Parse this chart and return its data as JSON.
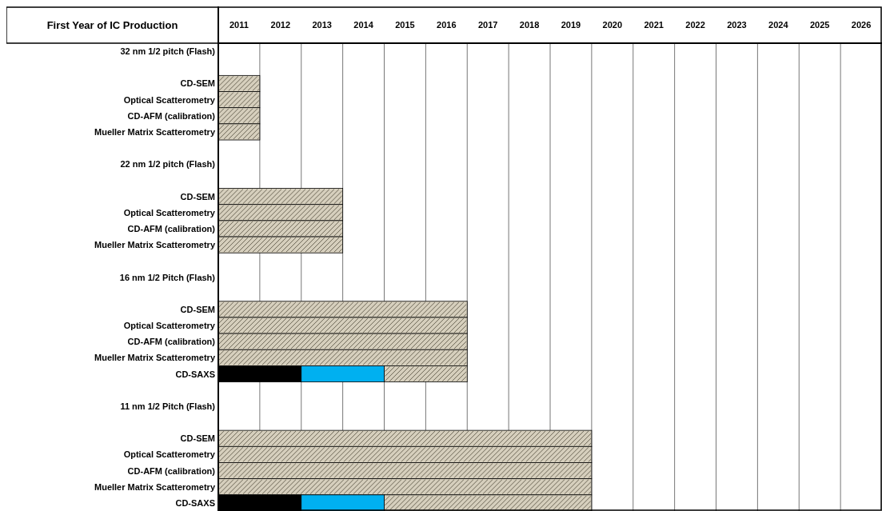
{
  "chart_data": {
    "type": "bar",
    "orientation": "horizontal",
    "stacked": false,
    "xlabel": "First Year of IC Production",
    "categories": [
      "32 nm 1/2 pitch (Flash)",
      null,
      "CD-SEM",
      "Optical Scatterometry",
      "CD-AFM (calibration)",
      "Mueller Matrix Scatterometry",
      null,
      "22 nm 1/2 pitch (Flash)",
      null,
      "CD-SEM",
      "Optical Scatterometry",
      "CD-AFM (calibration)",
      "Mueller Matrix Scatterometry",
      null,
      "16 nm 1/2 Pitch (Flash)",
      null,
      "CD-SEM",
      "Optical Scatterometry",
      "CD-AFM (calibration)",
      "Mueller Matrix Scatterometry",
      "CD-SAXS",
      null,
      "11 nm 1/2 Pitch (Flash)",
      null,
      "CD-SEM",
      "Optical Scatterometry",
      "CD-AFM (calibration)",
      "Mueller Matrix Scatterometry",
      "CD-SAXS"
    ],
    "series": [
      {
        "color": "#d6cfbd",
        "base": [
          null,
          null,
          2011,
          2011,
          2011,
          2011,
          null,
          null,
          null,
          2011,
          2011,
          2011,
          2011,
          null,
          null,
          null,
          2011,
          2011,
          2011,
          2011,
          2015,
          null,
          null,
          null,
          2011,
          2011,
          2011,
          2011,
          2015
        ],
        "values": [
          null,
          null,
          1,
          1,
          1,
          1,
          null,
          null,
          null,
          3,
          3,
          3,
          3,
          null,
          null,
          null,
          6,
          6,
          6,
          6,
          2,
          null,
          null,
          null,
          9,
          9,
          9,
          9,
          5
        ]
      },
      {
        "color": "#000000",
        "base": [
          null,
          null,
          null,
          null,
          null,
          null,
          null,
          null,
          null,
          null,
          null,
          null,
          null,
          null,
          null,
          null,
          null,
          null,
          null,
          null,
          2011,
          null,
          null,
          null,
          null,
          null,
          null,
          null,
          2011
        ],
        "values": [
          null,
          null,
          null,
          null,
          null,
          null,
          null,
          null,
          null,
          null,
          null,
          null,
          null,
          null,
          null,
          null,
          null,
          null,
          null,
          null,
          2,
          null,
          null,
          null,
          null,
          null,
          null,
          null,
          2
        ]
      },
      {
        "color": "#00b0f0",
        "base": [
          null,
          null,
          null,
          null,
          null,
          null,
          null,
          null,
          null,
          null,
          null,
          null,
          null,
          null,
          null,
          null,
          null,
          null,
          null,
          null,
          2013,
          null,
          null,
          null,
          null,
          null,
          null,
          null,
          2013
        ],
        "values": [
          null,
          null,
          null,
          null,
          null,
          null,
          null,
          null,
          null,
          null,
          null,
          null,
          null,
          null,
          null,
          null,
          null,
          null,
          null,
          null,
          2,
          null,
          null,
          null,
          null,
          null,
          null,
          null,
          2
        ]
      }
    ],
    "xlim": [
      2011,
      2027
    ],
    "xticks": [
      {
        "value": 2011.5,
        "label": "2011"
      },
      {
        "value": 2012.5,
        "label": "2012"
      },
      {
        "value": 2013.5,
        "label": "2013"
      },
      {
        "value": 2014.5,
        "label": "2014"
      },
      {
        "value": 2015.5,
        "label": "2015"
      },
      {
        "value": 2016.5,
        "label": "2016"
      },
      {
        "value": 2017.5,
        "label": "2017"
      },
      {
        "value": 2018.5,
        "label": "2018"
      },
      {
        "value": 2019.5,
        "label": "2019"
      },
      {
        "value": 2020.5,
        "label": "2020"
      },
      {
        "value": 2021.5,
        "label": "2021"
      },
      {
        "value": 2022.5,
        "label": "2022"
      },
      {
        "value": 2023.5,
        "label": "2023"
      },
      {
        "value": 2024.5,
        "label": "2024"
      },
      {
        "value": 2025.5,
        "label": "2025"
      },
      {
        "value": 2026.5,
        "label": "2026"
      }
    ]
  }
}
